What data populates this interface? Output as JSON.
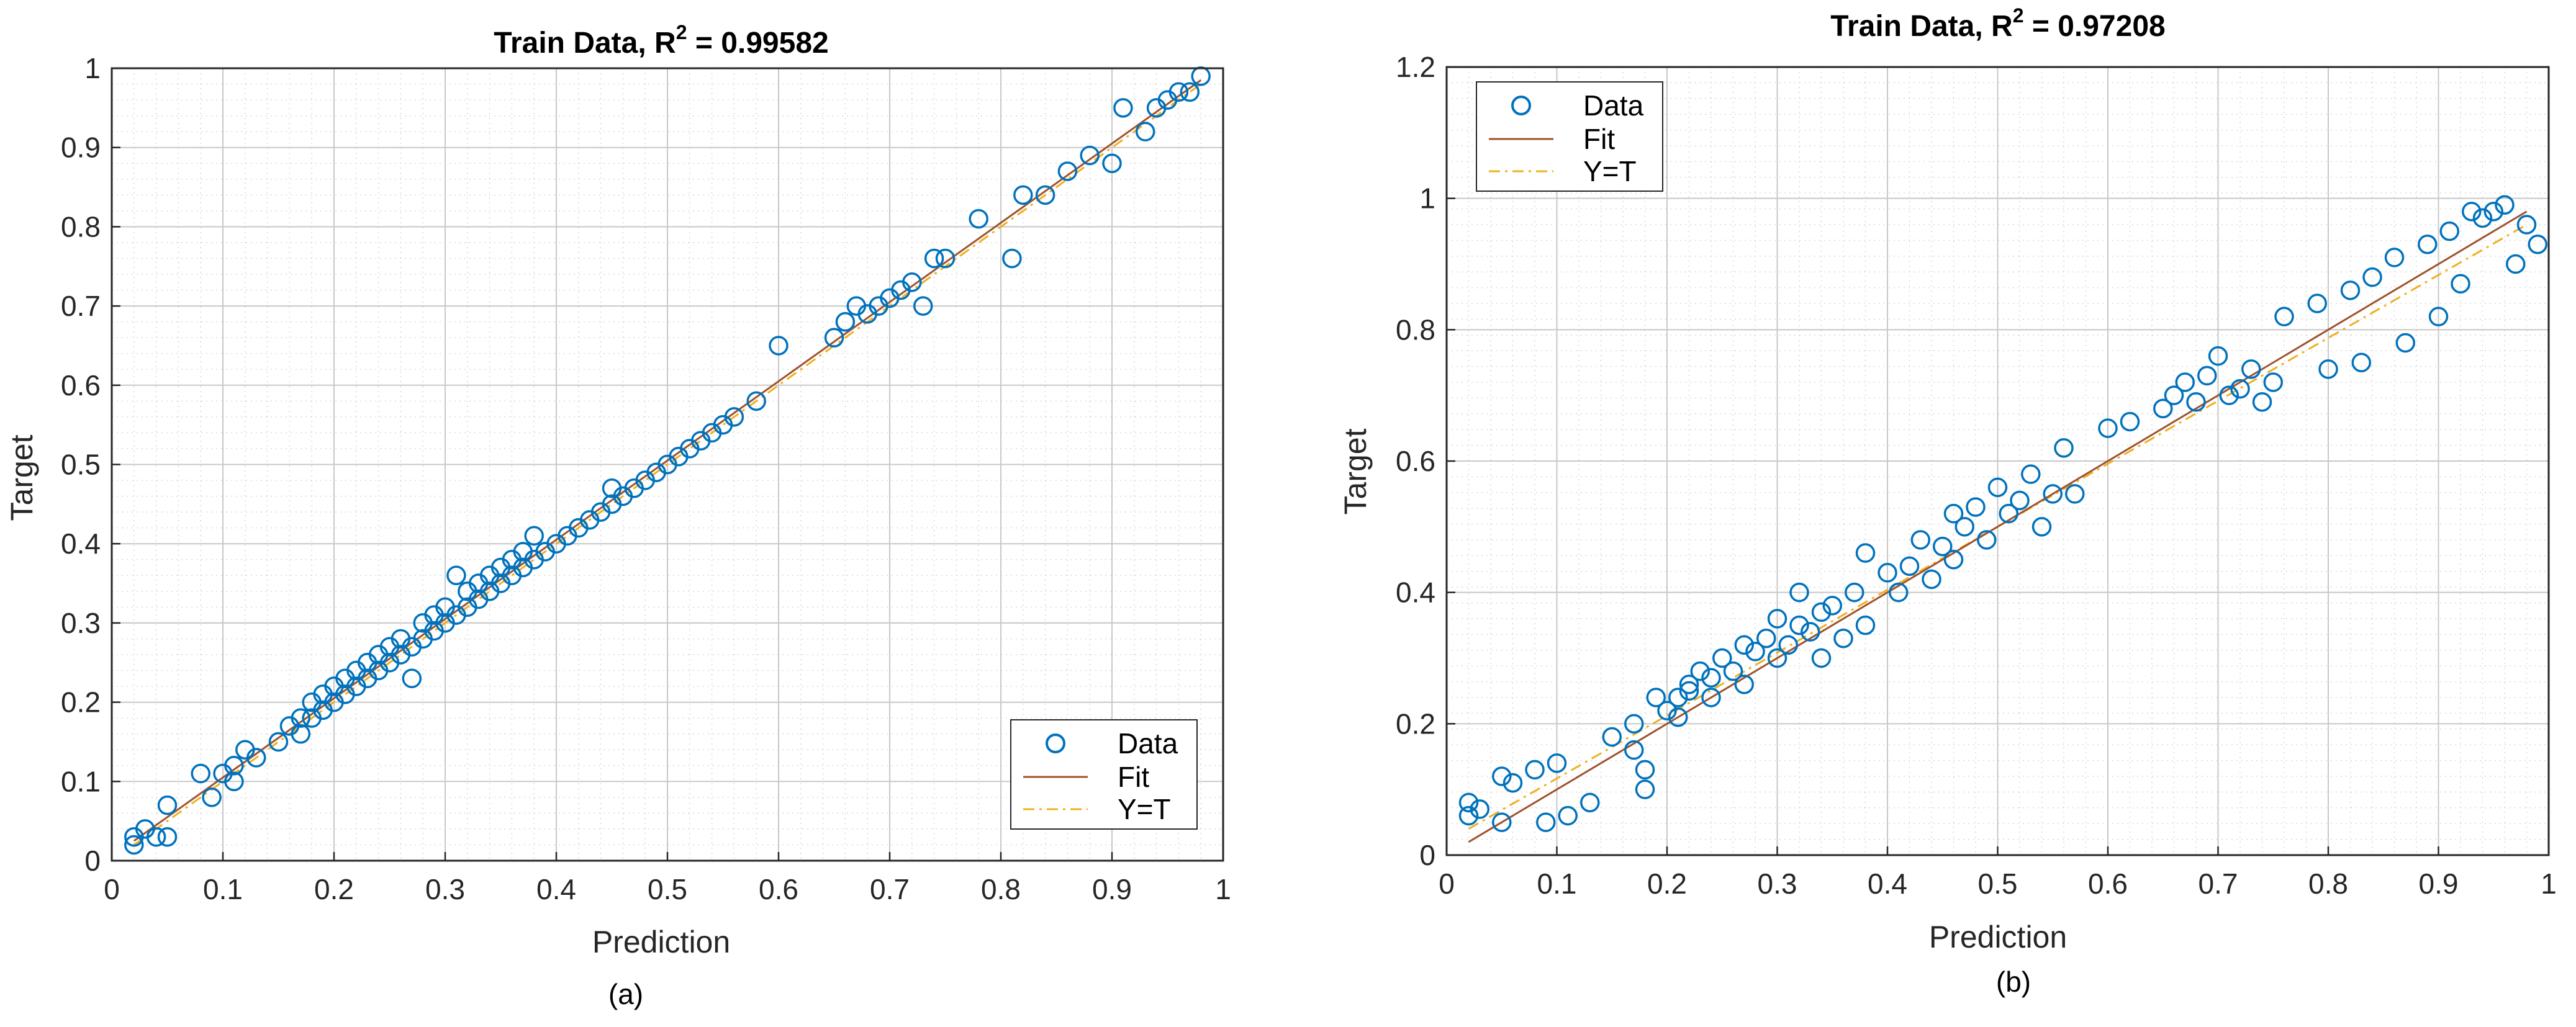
{
  "chart_data": [
    {
      "type": "scatter",
      "title_prefix": "Train Data, R",
      "title_sup": "2",
      "title_value": " = 0.99582",
      "xlabel": "Prediction",
      "ylabel": "Target",
      "xlim": [
        0,
        1
      ],
      "ylim": [
        0,
        1
      ],
      "xticks": [
        0,
        0.1,
        0.2,
        0.3,
        0.4,
        0.5,
        0.6,
        0.7,
        0.8,
        0.9,
        1
      ],
      "yticks": [
        0,
        0.1,
        0.2,
        0.3,
        0.4,
        0.5,
        0.6,
        0.7,
        0.8,
        0.9,
        1
      ],
      "xtick_labels": [
        "0",
        "0.1",
        "0.2",
        "0.3",
        "0.4",
        "0.5",
        "0.6",
        "0.7",
        "0.8",
        "0.9",
        "1"
      ],
      "ytick_labels": [
        "0",
        "0.1",
        "0.2",
        "0.3",
        "0.4",
        "0.5",
        "0.6",
        "0.7",
        "0.8",
        "0.9",
        "1"
      ],
      "legend": [
        "Data",
        "Fit",
        "Y=T"
      ],
      "legend_position": "bottom-right",
      "caption": "(a)",
      "fit_line": {
        "x": [
          0.02,
          0.98
        ],
        "y": [
          0.025,
          0.985
        ]
      },
      "identity_line": {
        "x": [
          0.02,
          0.98
        ],
        "y": [
          0.02,
          0.98
        ]
      },
      "series": [
        {
          "name": "Data",
          "x": [
            0.02,
            0.02,
            0.03,
            0.04,
            0.05,
            0.05,
            0.08,
            0.09,
            0.1,
            0.11,
            0.11,
            0.12,
            0.13,
            0.15,
            0.16,
            0.17,
            0.17,
            0.18,
            0.18,
            0.19,
            0.19,
            0.2,
            0.2,
            0.21,
            0.21,
            0.22,
            0.22,
            0.23,
            0.23,
            0.24,
            0.24,
            0.25,
            0.25,
            0.26,
            0.26,
            0.27,
            0.27,
            0.28,
            0.28,
            0.29,
            0.29,
            0.3,
            0.3,
            0.31,
            0.31,
            0.32,
            0.32,
            0.33,
            0.33,
            0.34,
            0.34,
            0.35,
            0.35,
            0.36,
            0.36,
            0.37,
            0.37,
            0.38,
            0.38,
            0.39,
            0.4,
            0.41,
            0.42,
            0.43,
            0.44,
            0.45,
            0.45,
            0.46,
            0.47,
            0.48,
            0.49,
            0.5,
            0.51,
            0.52,
            0.53,
            0.54,
            0.55,
            0.56,
            0.58,
            0.6,
            0.65,
            0.66,
            0.67,
            0.68,
            0.69,
            0.7,
            0.71,
            0.72,
            0.73,
            0.74,
            0.75,
            0.78,
            0.81,
            0.82,
            0.84,
            0.86,
            0.88,
            0.9,
            0.91,
            0.93,
            0.94,
            0.95,
            0.96,
            0.97,
            0.98
          ],
          "y": [
            0.02,
            0.03,
            0.04,
            0.03,
            0.07,
            0.03,
            0.11,
            0.08,
            0.11,
            0.12,
            0.1,
            0.14,
            0.13,
            0.15,
            0.17,
            0.18,
            0.16,
            0.18,
            0.2,
            0.19,
            0.21,
            0.2,
            0.22,
            0.21,
            0.23,
            0.22,
            0.24,
            0.23,
            0.25,
            0.24,
            0.26,
            0.25,
            0.27,
            0.26,
            0.28,
            0.27,
            0.23,
            0.28,
            0.3,
            0.29,
            0.31,
            0.3,
            0.32,
            0.31,
            0.36,
            0.32,
            0.34,
            0.33,
            0.35,
            0.34,
            0.36,
            0.35,
            0.37,
            0.36,
            0.38,
            0.37,
            0.39,
            0.38,
            0.41,
            0.39,
            0.4,
            0.41,
            0.42,
            0.43,
            0.44,
            0.45,
            0.47,
            0.46,
            0.47,
            0.48,
            0.49,
            0.5,
            0.51,
            0.52,
            0.53,
            0.54,
            0.55,
            0.56,
            0.58,
            0.65,
            0.66,
            0.68,
            0.7,
            0.69,
            0.7,
            0.71,
            0.72,
            0.73,
            0.7,
            0.76,
            0.76,
            0.81,
            0.76,
            0.84,
            0.84,
            0.87,
            0.89,
            0.88,
            0.95,
            0.92,
            0.95,
            0.96,
            0.97,
            0.97,
            0.99
          ]
        }
      ]
    },
    {
      "type": "scatter",
      "title_prefix": "Train Data, R",
      "title_sup": "2",
      "title_value": " = 0.97208",
      "xlabel": "Prediction",
      "ylabel": "Target",
      "xlim": [
        0,
        1
      ],
      "ylim": [
        0,
        1.2
      ],
      "xticks": [
        0,
        0.1,
        0.2,
        0.3,
        0.4,
        0.5,
        0.6,
        0.7,
        0.8,
        0.9,
        1
      ],
      "yticks": [
        0,
        0.2,
        0.4,
        0.6,
        0.8,
        1,
        1.2
      ],
      "xtick_labels": [
        "0",
        "0.1",
        "0.2",
        "0.3",
        "0.4",
        "0.5",
        "0.6",
        "0.7",
        "0.8",
        "0.9",
        "1"
      ],
      "ytick_labels": [
        "0",
        "0.2",
        "0.4",
        "0.6",
        "0.8",
        "1",
        "1.2"
      ],
      "legend": [
        "Data",
        "Fit",
        "Y=T"
      ],
      "legend_position": "top-left",
      "caption": "(b)",
      "fit_line": {
        "x": [
          0.02,
          0.98
        ],
        "y": [
          0.02,
          0.98
        ]
      },
      "identity_line": {
        "x": [
          0.02,
          0.98
        ],
        "y": [
          0.04,
          0.96
        ]
      },
      "series": [
        {
          "name": "Data",
          "x": [
            0.02,
            0.02,
            0.03,
            0.05,
            0.05,
            0.06,
            0.08,
            0.09,
            0.1,
            0.11,
            0.13,
            0.15,
            0.17,
            0.17,
            0.18,
            0.18,
            0.19,
            0.2,
            0.21,
            0.21,
            0.22,
            0.22,
            0.23,
            0.24,
            0.24,
            0.25,
            0.26,
            0.27,
            0.27,
            0.28,
            0.29,
            0.3,
            0.3,
            0.31,
            0.32,
            0.32,
            0.33,
            0.34,
            0.34,
            0.35,
            0.36,
            0.37,
            0.38,
            0.38,
            0.4,
            0.41,
            0.42,
            0.43,
            0.44,
            0.45,
            0.46,
            0.46,
            0.47,
            0.48,
            0.49,
            0.5,
            0.51,
            0.52,
            0.53,
            0.54,
            0.55,
            0.56,
            0.57,
            0.6,
            0.62,
            0.65,
            0.66,
            0.67,
            0.68,
            0.69,
            0.7,
            0.71,
            0.72,
            0.73,
            0.74,
            0.75,
            0.76,
            0.79,
            0.8,
            0.82,
            0.83,
            0.84,
            0.86,
            0.87,
            0.89,
            0.9,
            0.91,
            0.92,
            0.93,
            0.94,
            0.95,
            0.96,
            0.97,
            0.98,
            0.99
          ],
          "y": [
            0.06,
            0.08,
            0.07,
            0.05,
            0.12,
            0.11,
            0.13,
            0.05,
            0.14,
            0.06,
            0.08,
            0.18,
            0.2,
            0.16,
            0.1,
            0.13,
            0.24,
            0.22,
            0.24,
            0.21,
            0.26,
            0.25,
            0.28,
            0.24,
            0.27,
            0.3,
            0.28,
            0.32,
            0.26,
            0.31,
            0.33,
            0.3,
            0.36,
            0.32,
            0.35,
            0.4,
            0.34,
            0.37,
            0.3,
            0.38,
            0.33,
            0.4,
            0.35,
            0.46,
            0.43,
            0.4,
            0.44,
            0.48,
            0.42,
            0.47,
            0.45,
            0.52,
            0.5,
            0.53,
            0.48,
            0.56,
            0.52,
            0.54,
            0.58,
            0.5,
            0.55,
            0.62,
            0.55,
            0.65,
            0.66,
            0.68,
            0.7,
            0.72,
            0.69,
            0.73,
            0.76,
            0.7,
            0.71,
            0.74,
            0.69,
            0.72,
            0.82,
            0.84,
            0.74,
            0.86,
            0.75,
            0.88,
            0.91,
            0.78,
            0.93,
            0.82,
            0.95,
            0.87,
            0.98,
            0.97,
            0.98,
            0.99,
            0.9,
            0.96,
            0.93
          ]
        }
      ]
    }
  ],
  "colors": {
    "marker": "#0072BD",
    "fit": "#A0522D",
    "identity": "#EDB120",
    "grid_minor": "#d9d9d9",
    "grid_major": "#c8c8c8",
    "axis": "#262626"
  }
}
